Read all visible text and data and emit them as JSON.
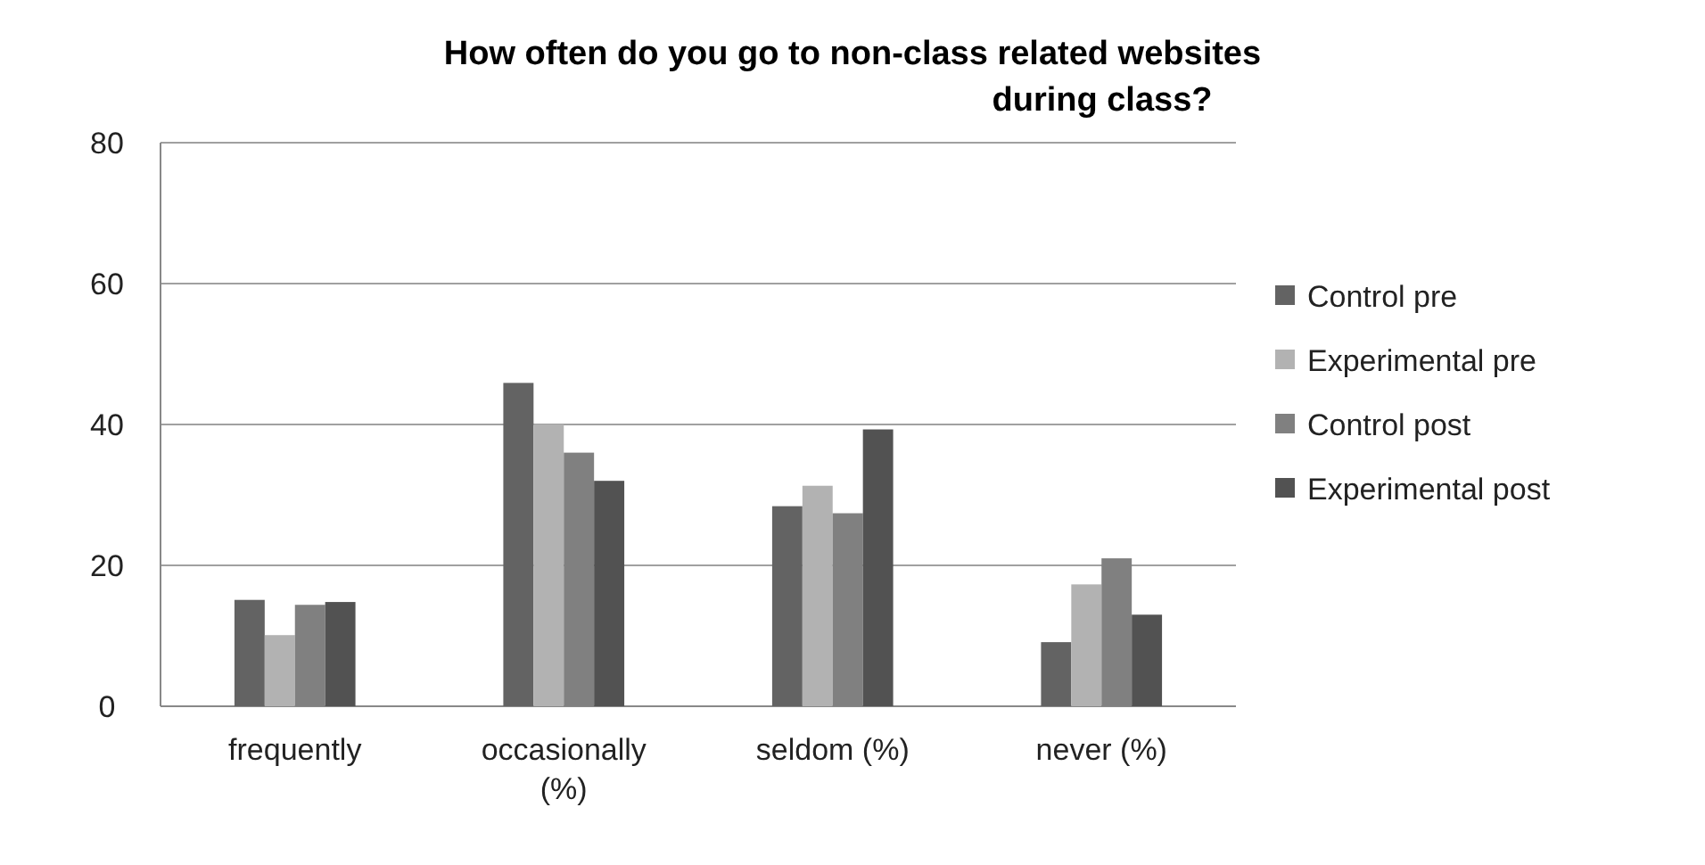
{
  "chart_data": {
    "type": "bar",
    "title": "How often do you go to non-class related websites during class?",
    "categories": [
      "frequently",
      "occasionally (%)",
      "seldom (%)",
      "never (%)"
    ],
    "series": [
      {
        "name": "Control pre",
        "color": "#636363",
        "values": [
          15.1,
          45.9,
          28.4,
          9.1
        ]
      },
      {
        "name": "Experimental pre",
        "color": "#b2b2b2",
        "values": [
          10.1,
          40,
          31.3,
          17.3
        ]
      },
      {
        "name": "Control post",
        "color": "#808080",
        "values": [
          14.4,
          36,
          27.4,
          21
        ]
      },
      {
        "name": "Experimental post",
        "color": "#525252",
        "values": [
          14.8,
          32,
          39.3,
          13
        ]
      }
    ],
    "ylim": [
      0,
      80
    ],
    "yticks": [
      0,
      20,
      40,
      60,
      80
    ],
    "grid": "y",
    "legend": "right"
  }
}
